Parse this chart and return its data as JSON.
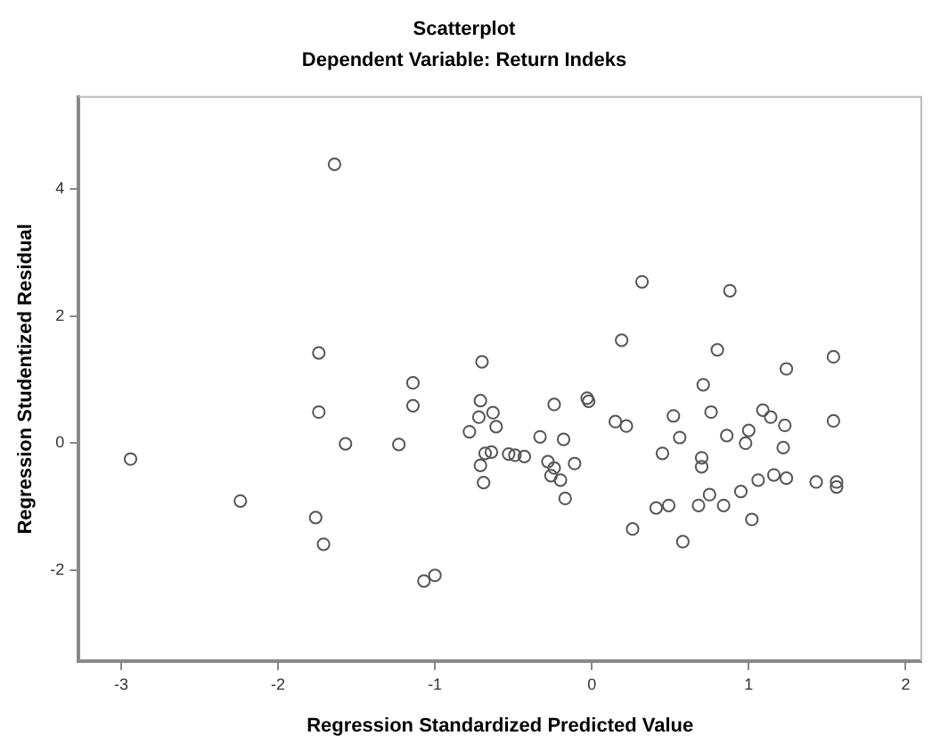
{
  "chart_data": {
    "type": "scatter",
    "title": "Scatterplot",
    "subtitle": "Dependent Variable: Return Indeks",
    "xlabel": "Regression Standardized Predicted Value",
    "ylabel": "Regression Studentized Residual",
    "xlim": [
      -3.27,
      2.1
    ],
    "ylim": [
      -3.43,
      5.45
    ],
    "xticks": [
      -3,
      -2,
      -1,
      0,
      1,
      2
    ],
    "yticks": [
      -2,
      0,
      2,
      4
    ],
    "grid": false,
    "legend": false,
    "marker": "circle",
    "series": [
      {
        "color": "#555555",
        "x": [
          -1.64,
          -1.74,
          -1.74,
          -1.57,
          -1.23,
          -1.14,
          -1.14,
          -2.94,
          -2.24,
          -1.76,
          -1.71,
          -1.07,
          -1.0,
          -0.7,
          -0.71,
          -0.72,
          -0.63,
          -0.61,
          -0.78,
          -0.68,
          -0.64,
          -0.71,
          -0.69,
          -0.53,
          -0.49,
          -0.43,
          -0.33,
          -0.24,
          -0.18,
          -0.28,
          -0.24,
          -0.26,
          -0.2,
          -0.11,
          -0.17,
          -0.03,
          -0.02,
          0.15,
          0.22,
          0.19,
          0.32,
          0.26,
          0.41,
          0.49,
          0.45,
          0.52,
          0.56,
          0.58,
          0.68,
          0.7,
          0.7,
          0.71,
          0.75,
          0.76,
          0.8,
          0.84,
          0.88,
          0.86,
          0.95,
          0.98,
          1.0,
          1.02,
          1.06,
          1.09,
          1.14,
          1.16,
          1.23,
          1.22,
          1.24,
          1.24,
          1.43,
          1.54,
          1.54,
          1.56,
          1.56
        ],
        "values": [
          4.39,
          1.42,
          0.49,
          -0.01,
          -0.02,
          0.95,
          0.59,
          -0.25,
          -0.91,
          -1.17,
          -1.59,
          -2.17,
          -2.08,
          1.28,
          0.67,
          0.41,
          0.48,
          0.26,
          0.18,
          -0.16,
          -0.14,
          -0.35,
          -0.62,
          -0.17,
          -0.19,
          -0.21,
          0.1,
          0.61,
          0.06,
          -0.29,
          -0.39,
          -0.51,
          -0.58,
          -0.32,
          -0.87,
          0.71,
          0.66,
          0.34,
          0.27,
          1.62,
          2.54,
          -1.35,
          -1.02,
          -0.98,
          -0.16,
          0.43,
          0.09,
          -1.55,
          -0.98,
          -0.23,
          -0.37,
          0.92,
          -0.81,
          0.49,
          1.47,
          -0.98,
          2.4,
          0.12,
          -0.76,
          0.0,
          0.2,
          -1.2,
          -0.58,
          0.52,
          0.41,
          -0.5,
          0.28,
          -0.07,
          1.17,
          -0.55,
          -0.61,
          1.36,
          0.35,
          -0.61,
          -0.69
        ]
      }
    ]
  }
}
